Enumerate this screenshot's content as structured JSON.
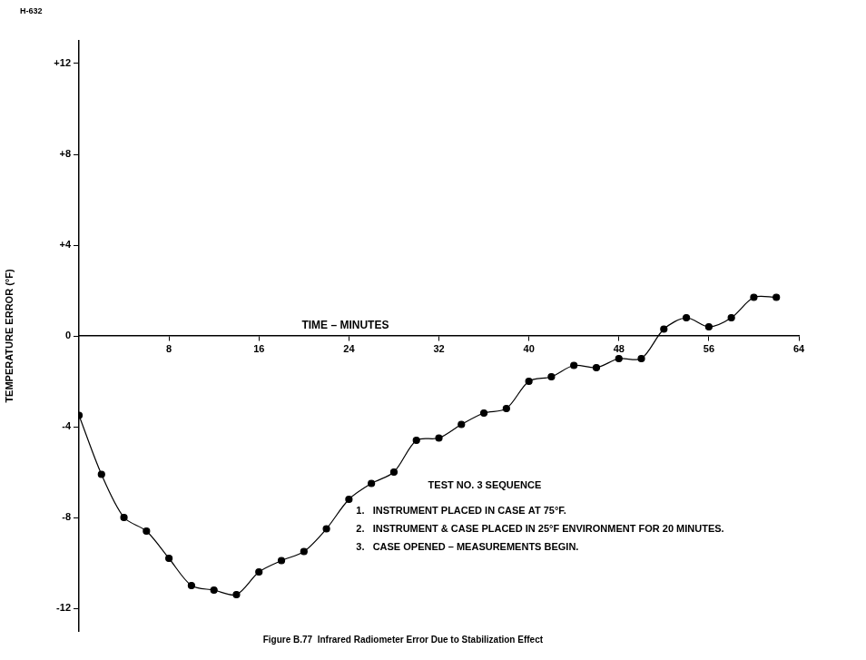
{
  "chart_data": {
    "type": "line",
    "page_label": "H-632",
    "title": "Figure B.77  Infrared Radiometer Error Due to Stabilization Effect",
    "x_label": "TIME – MINUTES",
    "y_label": "TEMPERATURE ERROR (°F)",
    "annotations": [
      "TEST NO. 3 SEQUENCE",
      "1.   INSTRUMENT PLACED IN CASE AT 75°F.",
      "2.   INSTRUMENT & CASE PLACED IN 25°F ENVIRONMENT FOR 20 MINUTES.",
      "3.   CASE OPENED – MEASUREMENTS BEGIN."
    ],
    "x": [
      0,
      2,
      4,
      6,
      8,
      10,
      12,
      14,
      16,
      18,
      20,
      22,
      24,
      26,
      28,
      30,
      32,
      34,
      36,
      38,
      40,
      42,
      44,
      46,
      48,
      50,
      52,
      54,
      56,
      58,
      60,
      62
    ],
    "values": [
      -3.5,
      -6.1,
      -8.0,
      -8.6,
      -9.8,
      -11.0,
      -11.2,
      -11.4,
      -10.4,
      -9.9,
      -9.5,
      -8.5,
      -7.2,
      -6.5,
      -6.0,
      -4.6,
      -4.5,
      -3.9,
      -3.4,
      -3.2,
      -2.0,
      -1.8,
      -1.3,
      -1.4,
      -1.0,
      -1.0,
      0.3,
      0.8,
      0.4,
      0.8,
      1.7,
      1.7
    ],
    "color": "#000000",
    "marker": "circle",
    "line_style": "solid",
    "xlim": [
      0,
      64
    ],
    "xticks": [
      8,
      16,
      24,
      32,
      40,
      48,
      56,
      64
    ],
    "ylim": [
      -13,
      13
    ],
    "yticks": [
      -12,
      -8,
      -4,
      0,
      {
        "value": 4,
        "label": "+4"
      },
      {
        "value": 8,
        "label": "+8"
      },
      {
        "value": 12,
        "label": "+12"
      }
    ],
    "grid": false
  }
}
